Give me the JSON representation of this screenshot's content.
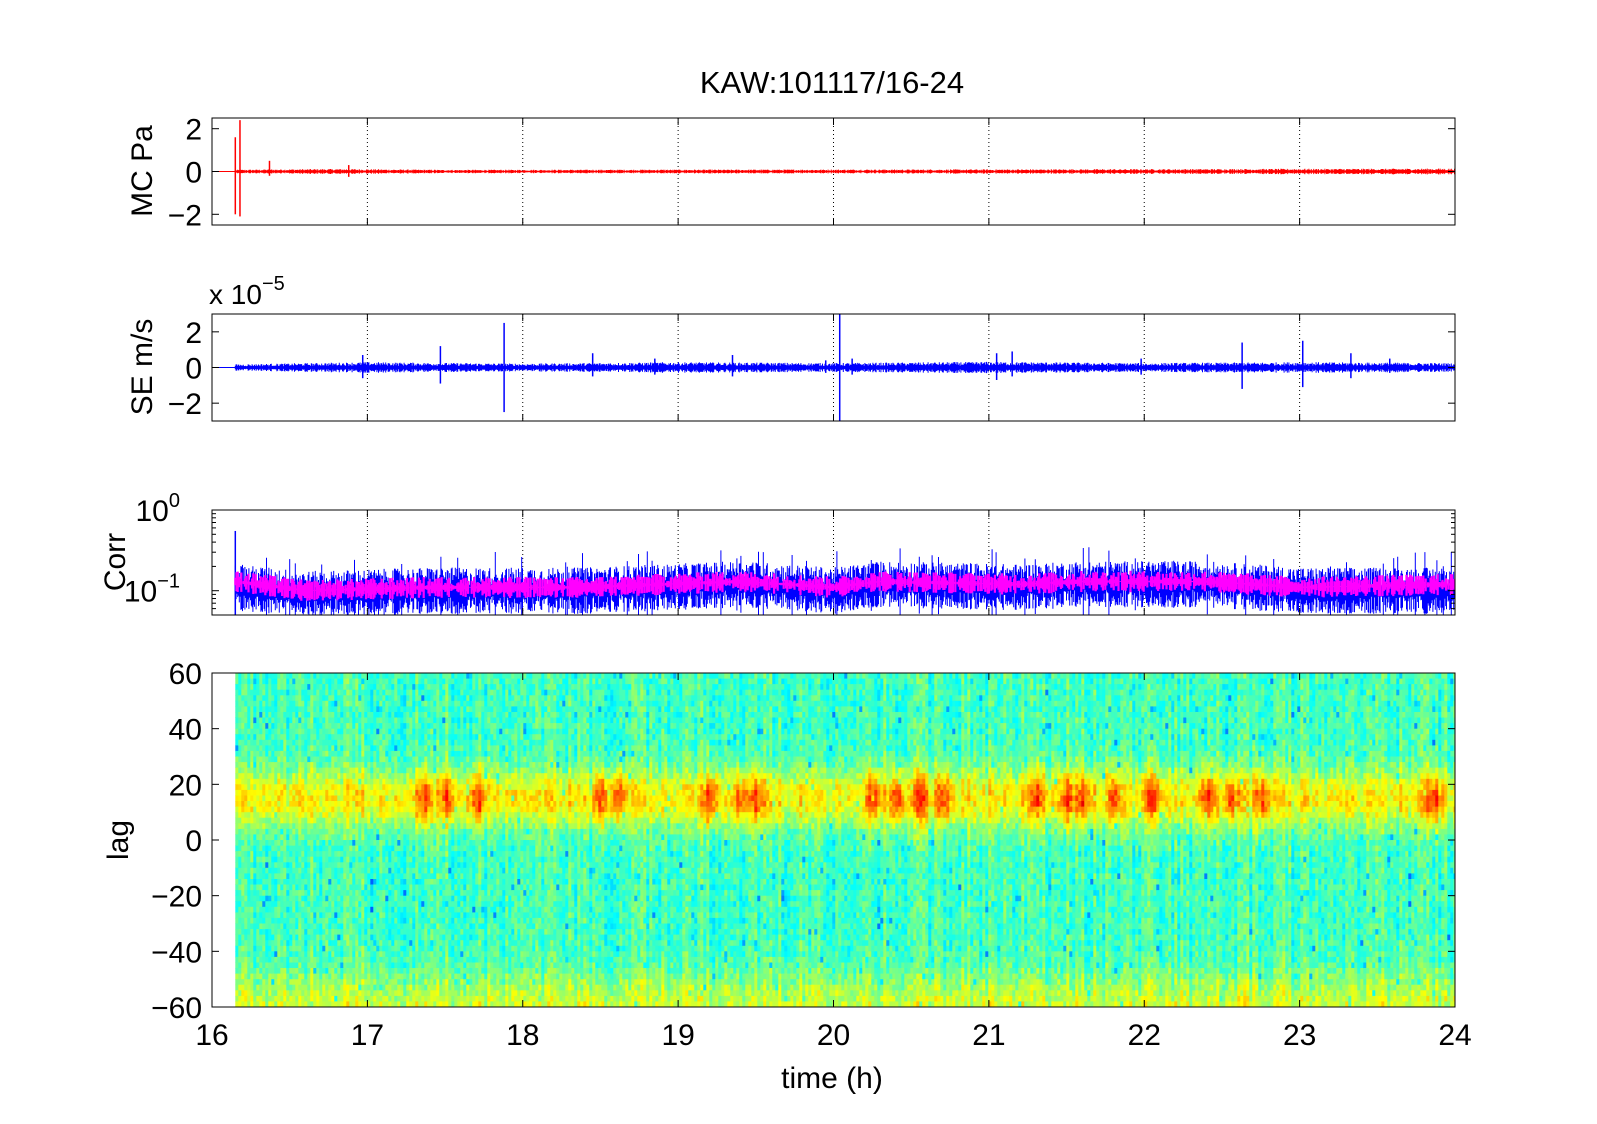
{
  "figure": {
    "title": "KAW:101117/16-24"
  },
  "chart_data": [
    {
      "type": "line",
      "panel": "pressure",
      "ylabel": "MC Pa",
      "xlim": [
        16,
        24
      ],
      "ylim": [
        -2.5,
        2.5
      ],
      "x_ticks": [
        16,
        17,
        18,
        19,
        20,
        21,
        22,
        23,
        24
      ],
      "y_ticks": [
        -2,
        0,
        2
      ],
      "y_tick_labels": [
        "−2",
        "0",
        "2"
      ],
      "grid": "x-dotted",
      "series": [
        {
          "color": "#ff0000",
          "start": 16.15,
          "end": 24,
          "baseline": 0,
          "noise_amplitude": [
            [
              16.15,
              0.08
            ],
            [
              16.35,
              0.1
            ],
            [
              16.8,
              0.12
            ],
            [
              17.5,
              0.08
            ],
            [
              19,
              0.09
            ],
            [
              21,
              0.1
            ],
            [
              22.5,
              0.12
            ],
            [
              24,
              0.14
            ]
          ],
          "spikes": [
            {
              "x": 16.15,
              "min": -2.0,
              "max": 1.6
            },
            {
              "x": 16.18,
              "min": -2.1,
              "max": 2.4
            },
            {
              "x": 16.37,
              "min": -0.2,
              "max": 0.5
            },
            {
              "x": 16.88,
              "min": -0.25,
              "max": 0.3
            }
          ]
        }
      ]
    },
    {
      "type": "line",
      "panel": "velocity",
      "ylabel": "SE m/s",
      "y_exponent_base": "x 10",
      "y_exponent_power": "−5",
      "xlim": [
        16,
        24
      ],
      "ylim": [
        -3,
        3
      ],
      "x_ticks": [
        16,
        17,
        18,
        19,
        20,
        21,
        22,
        23,
        24
      ],
      "y_ticks": [
        -2,
        0,
        2
      ],
      "y_tick_labels": [
        "−2",
        "0",
        "2"
      ],
      "grid": "x-dotted",
      "series": [
        {
          "color": "#0000ff",
          "start": 16.15,
          "end": 24,
          "baseline": 0,
          "noise_amplitude": [
            [
              16.15,
              0.18
            ],
            [
              17,
              0.3
            ],
            [
              18,
              0.22
            ],
            [
              19,
              0.3
            ],
            [
              20,
              0.25
            ],
            [
              21,
              0.32
            ],
            [
              22,
              0.25
            ],
            [
              23,
              0.3
            ],
            [
              24,
              0.25
            ]
          ],
          "spikes": [
            {
              "x": 16.97,
              "min": -0.6,
              "max": 0.7
            },
            {
              "x": 17.47,
              "min": -0.9,
              "max": 1.2
            },
            {
              "x": 17.88,
              "min": -2.5,
              "max": 2.5
            },
            {
              "x": 18.45,
              "min": -0.5,
              "max": 0.8
            },
            {
              "x": 18.85,
              "min": -0.4,
              "max": 0.5
            },
            {
              "x": 19.35,
              "min": -0.5,
              "max": 0.7
            },
            {
              "x": 19.95,
              "min": -0.3,
              "max": 0.4
            },
            {
              "x": 20.04,
              "min": -3.0,
              "max": 3.0
            },
            {
              "x": 20.12,
              "min": -0.4,
              "max": 0.5
            },
            {
              "x": 21.05,
              "min": -0.7,
              "max": 0.8
            },
            {
              "x": 21.15,
              "min": -0.5,
              "max": 0.9
            },
            {
              "x": 21.98,
              "min": -0.4,
              "max": 0.5
            },
            {
              "x": 22.63,
              "min": -1.2,
              "max": 1.4
            },
            {
              "x": 23.02,
              "min": -1.1,
              "max": 1.5
            },
            {
              "x": 23.33,
              "min": -0.6,
              "max": 0.8
            },
            {
              "x": 23.58,
              "min": -0.3,
              "max": 0.5
            }
          ]
        }
      ]
    },
    {
      "type": "line",
      "panel": "correlation",
      "ylabel": "Corr",
      "yscale": "log",
      "xlim": [
        16,
        24
      ],
      "ylim": [
        0.05,
        1.0
      ],
      "x_ticks": [
        16,
        17,
        18,
        19,
        20,
        21,
        22,
        23,
        24
      ],
      "y_ticks": [
        0.1,
        1
      ],
      "y_tick_base": "10",
      "y_tick_powers": [
        "−1",
        "0"
      ],
      "grid": "x-dotted",
      "series": [
        {
          "color": "#0000ff",
          "role": "raw",
          "start": 16.15,
          "end": 24,
          "level": [
            [
              16.15,
              0.11
            ],
            [
              16.6,
              0.09
            ],
            [
              17.4,
              0.1
            ],
            [
              18.4,
              0.1
            ],
            [
              19.4,
              0.12
            ],
            [
              20,
              0.1
            ],
            [
              20.3,
              0.12
            ],
            [
              21.2,
              0.11
            ],
            [
              21.6,
              0.12
            ],
            [
              22.4,
              0.12
            ],
            [
              23,
              0.1
            ],
            [
              24,
              0.1
            ]
          ],
          "spread_factor": 1.55,
          "spikes": [
            {
              "x": 16.15,
              "min": 0.05,
              "max": 0.55
            }
          ]
        },
        {
          "color": "#ff00ff",
          "role": "smoothed",
          "start": 16.15,
          "end": 24,
          "level": [
            [
              16.15,
              0.13
            ],
            [
              16.6,
              0.1
            ],
            [
              17.4,
              0.11
            ],
            [
              18.4,
              0.11
            ],
            [
              19.4,
              0.13
            ],
            [
              20,
              0.11
            ],
            [
              20.3,
              0.13
            ],
            [
              21.2,
              0.12
            ],
            [
              21.6,
              0.13
            ],
            [
              22.4,
              0.13
            ],
            [
              23,
              0.11
            ],
            [
              24,
              0.12
            ]
          ],
          "spread_factor": 1.18
        }
      ]
    },
    {
      "type": "heatmap",
      "panel": "lag",
      "xlabel": "time (h)",
      "ylabel": "lag",
      "xlim": [
        16,
        24
      ],
      "ylim": [
        -60,
        60
      ],
      "x_ticks": [
        16,
        17,
        18,
        19,
        20,
        21,
        22,
        23,
        24
      ],
      "x_tick_labels": [
        "16",
        "17",
        "18",
        "19",
        "20",
        "21",
        "22",
        "23",
        "24"
      ],
      "y_ticks": [
        -60,
        -40,
        -20,
        0,
        20,
        40,
        60
      ],
      "y_tick_labels": [
        "−60",
        "−40",
        "−20",
        "0",
        "20",
        "40",
        "60"
      ],
      "data_start": 16.15,
      "colormap": "jet",
      "band_center_lag": 15,
      "band_halfwidth_lag": 10,
      "hotspots": [
        17.35,
        17.5,
        17.7,
        18.5,
        18.6,
        19.2,
        19.4,
        19.5,
        20.25,
        20.4,
        20.55,
        20.7,
        21.3,
        21.5,
        21.6,
        21.8,
        22.05,
        22.4,
        22.55,
        22.75,
        23.85
      ]
    }
  ]
}
